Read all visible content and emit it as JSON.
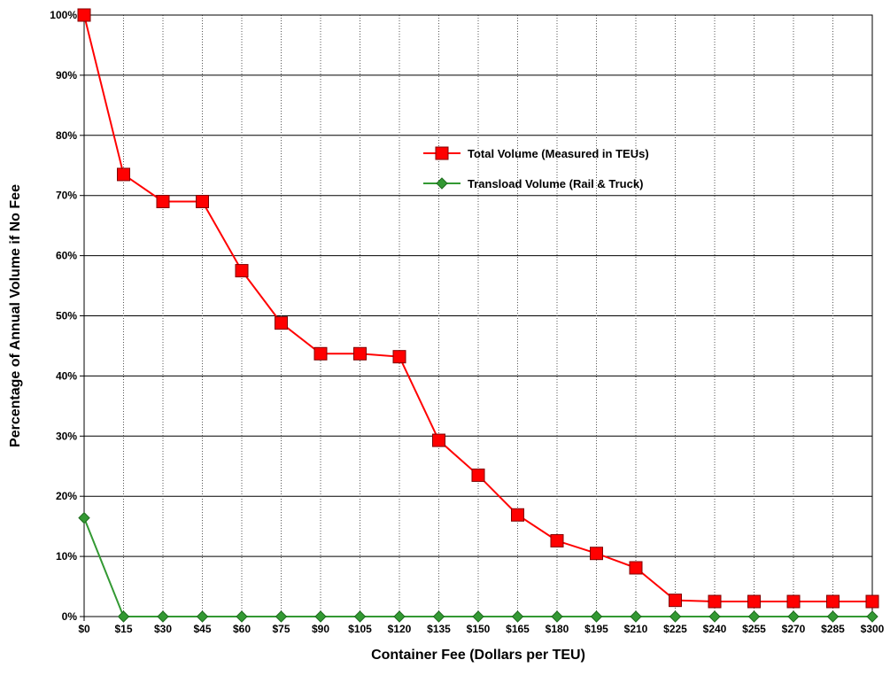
{
  "chart_data": {
    "type": "line",
    "title": "",
    "xlabel": "Container Fee (Dollars per TEU)",
    "ylabel": "Percentage of Annual Volume if No Fee",
    "categories": [
      "$0",
      "$15",
      "$30",
      "$45",
      "$60",
      "$75",
      "$90",
      "$105",
      "$120",
      "$135",
      "$150",
      "$165",
      "$180",
      "$195",
      "$210",
      "$225",
      "$240",
      "$255",
      "$270",
      "$285",
      "$300"
    ],
    "y_ticks": [
      "0%",
      "10%",
      "20%",
      "30%",
      "40%",
      "50%",
      "60%",
      "70%",
      "80%",
      "90%",
      "100%"
    ],
    "ylim": [
      0,
      100
    ],
    "grid": {
      "horizontal": "solid",
      "vertical": "dotted"
    },
    "legend_position": "upper-center-right",
    "series": [
      {
        "name": "Total Volume (Measured in TEUs)",
        "color": "#ff0000",
        "marker": "square",
        "values": [
          100,
          73.5,
          69,
          69,
          57.5,
          48.8,
          43.7,
          43.7,
          43.2,
          29.3,
          23.5,
          16.9,
          12.6,
          10.5,
          8.1,
          2.7,
          2.5,
          2.5,
          2.5,
          2.5,
          2.5
        ]
      },
      {
        "name": "Transload Volume (Rail & Truck)",
        "color": "#339933",
        "marker": "diamond",
        "values": [
          16.4,
          0,
          0,
          0,
          0,
          0,
          0,
          0,
          0,
          0,
          0,
          0,
          0,
          0,
          0,
          0,
          0,
          0,
          0,
          0,
          0
        ]
      }
    ]
  }
}
